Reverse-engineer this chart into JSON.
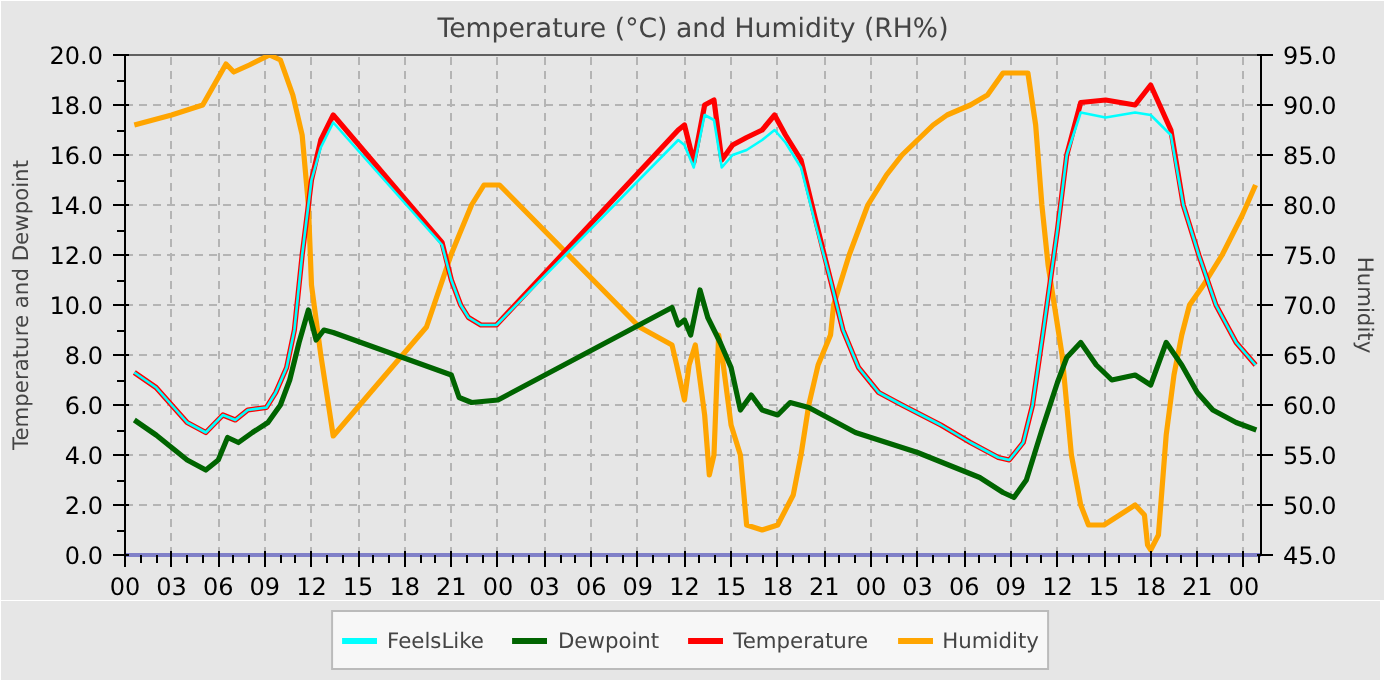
{
  "chart_data": {
    "type": "line",
    "title": "Temperature (°C) and Humidity (RH%)",
    "ylabel": "Temperature and Dewpoint",
    "y2label": "Humidity",
    "xlim": [
      0,
      73.1
    ],
    "ylim": [
      0,
      20
    ],
    "y2lim": [
      45,
      95
    ],
    "xticks": [
      {
        "value": 0,
        "label": "00"
      },
      {
        "value": 3,
        "label": "03"
      },
      {
        "value": 6,
        "label": "06"
      },
      {
        "value": 9,
        "label": "09"
      },
      {
        "value": 12,
        "label": "12"
      },
      {
        "value": 15,
        "label": "15"
      },
      {
        "value": 18,
        "label": "18"
      },
      {
        "value": 21,
        "label": "21"
      },
      {
        "value": 24,
        "label": "00"
      },
      {
        "value": 27,
        "label": "03"
      },
      {
        "value": 30,
        "label": "06"
      },
      {
        "value": 33,
        "label": "09"
      },
      {
        "value": 36,
        "label": "12"
      },
      {
        "value": 39,
        "label": "15"
      },
      {
        "value": 42,
        "label": "18"
      },
      {
        "value": 45,
        "label": "21"
      },
      {
        "value": 48,
        "label": "00"
      },
      {
        "value": 51,
        "label": "03"
      },
      {
        "value": 54,
        "label": "06"
      },
      {
        "value": 57,
        "label": "09"
      },
      {
        "value": 60,
        "label": "12"
      },
      {
        "value": 63,
        "label": "15"
      },
      {
        "value": 66,
        "label": "18"
      },
      {
        "value": 69,
        "label": "21"
      },
      {
        "value": 72,
        "label": "00"
      }
    ],
    "yticks": [
      {
        "value": 0,
        "label": "0.0"
      },
      {
        "value": 2,
        "label": "2.0"
      },
      {
        "value": 4,
        "label": "4.0"
      },
      {
        "value": 6,
        "label": "6.0"
      },
      {
        "value": 8,
        "label": "8.0"
      },
      {
        "value": 10,
        "label": "10.0"
      },
      {
        "value": 12,
        "label": "12.0"
      },
      {
        "value": 14,
        "label": "14.0"
      },
      {
        "value": 16,
        "label": "16.0"
      },
      {
        "value": 18,
        "label": "18.0"
      },
      {
        "value": 20,
        "label": "20.0"
      }
    ],
    "y2ticks": [
      {
        "value": 45,
        "label": "45.0"
      },
      {
        "value": 50,
        "label": "50.0"
      },
      {
        "value": 55,
        "label": "55.0"
      },
      {
        "value": 60,
        "label": "60.0"
      },
      {
        "value": 65,
        "label": "65.0"
      },
      {
        "value": 70,
        "label": "70.0"
      },
      {
        "value": 75,
        "label": "75.0"
      },
      {
        "value": 80,
        "label": "80.0"
      },
      {
        "value": 85,
        "label": "85.0"
      },
      {
        "value": 90,
        "label": "90.0"
      },
      {
        "value": 95,
        "label": "95.0"
      }
    ],
    "grid": true,
    "legend": "bottom",
    "line_style": "solid",
    "marker": "none",
    "series": [
      {
        "name": "FeelsLike",
        "color": "#00ffff",
        "x": [
          0.6,
          2,
          3,
          4,
          5.2,
          6.3,
          7.1,
          7.9,
          9.1,
          9.7,
          10.4,
          10.9,
          11.4,
          12,
          12.6,
          13.4,
          20.4,
          21,
          21.6,
          22.1,
          22.9,
          23.9,
          35.6,
          36,
          36.6,
          37.3,
          37.9,
          38.4,
          39.1,
          40,
          41,
          41.8,
          42.5,
          43.5,
          44.4,
          45.4,
          46.2,
          47.2,
          48.5,
          50,
          52.5,
          54.4,
          56.2,
          56.9,
          57.8,
          58.4,
          59.1,
          60,
          60.6,
          61.5,
          63.1,
          65,
          66,
          67.3,
          68.1,
          69.1,
          70.2,
          71.5,
          72.75
        ],
        "values": [
          7.3,
          6.7,
          6.0,
          5.3,
          4.9,
          5.6,
          5.4,
          5.8,
          5.9,
          6.5,
          7.5,
          9,
          12,
          15,
          16.3,
          17.3,
          12.4,
          11,
          10,
          9.5,
          9.2,
          9.2,
          16.6,
          16.4,
          15.5,
          17.6,
          17.4,
          15.5,
          16.0,
          16.2,
          16.6,
          17.0,
          16.5,
          15.5,
          13.3,
          11,
          9,
          7.5,
          6.5,
          6.0,
          5.2,
          4.5,
          3.9,
          3.8,
          4.5,
          6,
          9,
          13,
          16,
          17.7,
          17.5,
          17.7,
          17.6,
          16.8,
          14,
          12,
          10,
          8.5,
          7.6
        ]
      },
      {
        "name": "Dewpoint",
        "color": "#006400",
        "x": [
          0.6,
          2,
          3,
          4,
          5.2,
          6,
          6.6,
          7.3,
          8.2,
          9.2,
          10,
          10.6,
          11.2,
          11.8,
          12.3,
          12.8,
          13.4,
          21,
          21.5,
          22.3,
          24,
          35.2,
          35.6,
          36,
          36.4,
          37,
          37.5,
          38.3,
          39,
          39.6,
          40.3,
          41,
          42,
          42.8,
          44,
          45.5,
          47,
          49,
          51,
          53,
          55,
          56.5,
          57.2,
          58,
          59,
          60,
          60.6,
          61.5,
          62.5,
          63.5,
          65,
          66,
          67,
          68,
          69,
          70,
          71.5,
          72.8
        ],
        "values": [
          5.4,
          4.8,
          4.3,
          3.8,
          3.4,
          3.8,
          4.7,
          4.5,
          4.9,
          5.3,
          6,
          7,
          8.5,
          9.8,
          8.6,
          9.0,
          8.9,
          7.2,
          6.3,
          6.1,
          6.2,
          9.9,
          9.2,
          9.4,
          8.8,
          10.6,
          9.5,
          8.5,
          7.5,
          5.8,
          6.4,
          5.8,
          5.6,
          6.1,
          5.9,
          5.4,
          4.9,
          4.5,
          4.1,
          3.6,
          3.1,
          2.5,
          2.3,
          3,
          5,
          6.9,
          7.9,
          8.5,
          7.6,
          7.0,
          7.2,
          6.8,
          8.5,
          7.6,
          6.5,
          5.8,
          5.3,
          5.0
        ]
      },
      {
        "name": "Temperature",
        "color": "#ff0000",
        "x": [
          0.6,
          2,
          3,
          4,
          5.2,
          6.3,
          7.1,
          7.9,
          9.1,
          9.7,
          10.4,
          10.9,
          11.4,
          12,
          12.6,
          13.4,
          20.4,
          21,
          21.6,
          22.1,
          22.9,
          23.9,
          35.6,
          36,
          36.6,
          37.3,
          37.9,
          38.4,
          39.1,
          40,
          41,
          41.8,
          42.5,
          43.5,
          44.4,
          45.4,
          46.2,
          47.2,
          48.5,
          50,
          52.5,
          54.4,
          56.2,
          56.9,
          57.8,
          58.4,
          59.1,
          60,
          60.6,
          61.5,
          63.1,
          65,
          66,
          67.3,
          68.1,
          69.1,
          70.2,
          71.5,
          72.75
        ],
        "values": [
          7.3,
          6.7,
          6.0,
          5.3,
          4.9,
          5.6,
          5.4,
          5.8,
          5.9,
          6.5,
          7.5,
          9,
          12,
          15,
          16.6,
          17.6,
          12.5,
          11,
          10,
          9.5,
          9.2,
          9.2,
          17.0,
          17.2,
          15.7,
          18.0,
          18.2,
          15.8,
          16.4,
          16.7,
          17.0,
          17.6,
          16.8,
          15.8,
          13.5,
          11,
          9,
          7.5,
          6.5,
          6.0,
          5.2,
          4.5,
          3.9,
          3.8,
          4.5,
          6,
          9,
          13,
          16,
          18.1,
          18.2,
          18.0,
          18.8,
          17,
          14,
          12,
          10,
          8.5,
          7.6
        ]
      },
      {
        "name": "Humidity",
        "color": "#ffa500",
        "axis": "y2",
        "x": [
          0.6,
          3,
          5,
          6.5,
          7,
          8,
          9.3,
          10,
          10.8,
          11.4,
          11.8,
          12,
          12.6,
          13.4,
          19.4,
          21,
          21.5,
          22.3,
          23.1,
          24.1,
          33.1,
          35.2,
          35.5,
          36,
          36.3,
          36.7,
          37.3,
          37.6,
          37.9,
          38.2,
          38.5,
          39,
          39.6,
          40,
          41,
          42,
          42.5,
          43,
          43.5,
          44,
          44.6,
          45.4,
          45.6,
          46.6,
          47.8,
          49,
          50,
          51,
          52,
          52.9,
          54.4,
          55.5,
          56.5,
          58.1,
          58.6,
          59,
          59.4,
          59.8,
          60.3,
          60.9,
          61.5,
          62,
          63,
          64,
          65,
          65.6,
          65.8,
          66,
          66.5,
          67,
          67.5,
          68,
          68.5,
          69.4,
          70.6,
          71.9,
          72.75
        ],
        "values": [
          88,
          89,
          90,
          94.1,
          93.3,
          94,
          95,
          94.5,
          91,
          87,
          80,
          72,
          65,
          56.9,
          67.8,
          75.1,
          77,
          80,
          82,
          82,
          67.8,
          66,
          64,
          60.5,
          64,
          66,
          59,
          53,
          55,
          67,
          64,
          58,
          55,
          48,
          47.5,
          48,
          49.5,
          51,
          55,
          60,
          64,
          67,
          70,
          75,
          80,
          83,
          85,
          86.5,
          88,
          89,
          90,
          91,
          93.2,
          93.2,
          88,
          80,
          74,
          70,
          65,
          55,
          50,
          48,
          48,
          49,
          50,
          49,
          46,
          45.5,
          47,
          57,
          63,
          67,
          70,
          72,
          75,
          79,
          82
        ]
      }
    ]
  }
}
